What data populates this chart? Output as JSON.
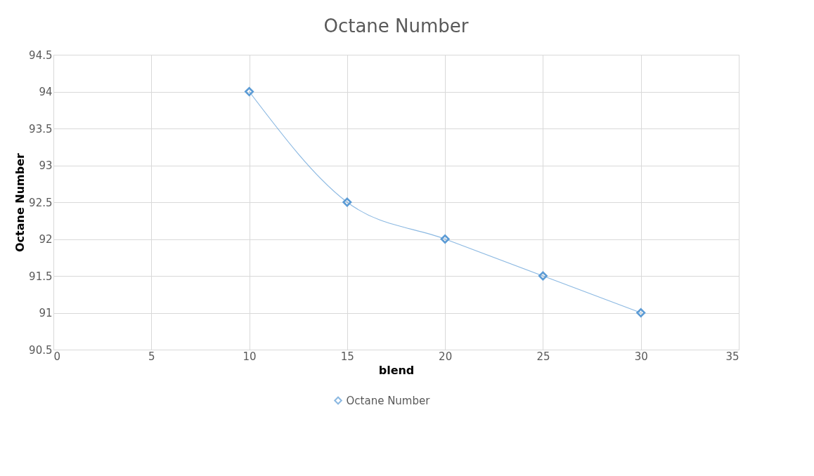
{
  "chart_data": {
    "type": "line",
    "title": "Octane Number",
    "xlabel": "blend",
    "ylabel": "Octane Number",
    "x": [
      10,
      15,
      20,
      25,
      30
    ],
    "series": [
      {
        "name": "Octane Number",
        "color": "#5b9bd5",
        "values": [
          94,
          92.5,
          92,
          91.5,
          91
        ]
      }
    ],
    "xlim": [
      0,
      35
    ],
    "xticks": [
      0,
      5,
      10,
      15,
      20,
      25,
      30,
      35
    ],
    "ylim": [
      90.5,
      94.5
    ],
    "yticks": [
      90.5,
      91,
      91.5,
      92,
      92.5,
      93,
      93.5,
      94,
      94.5
    ],
    "grid": true,
    "legend": "bottom",
    "marker": "diamond",
    "line_style": "solid"
  }
}
